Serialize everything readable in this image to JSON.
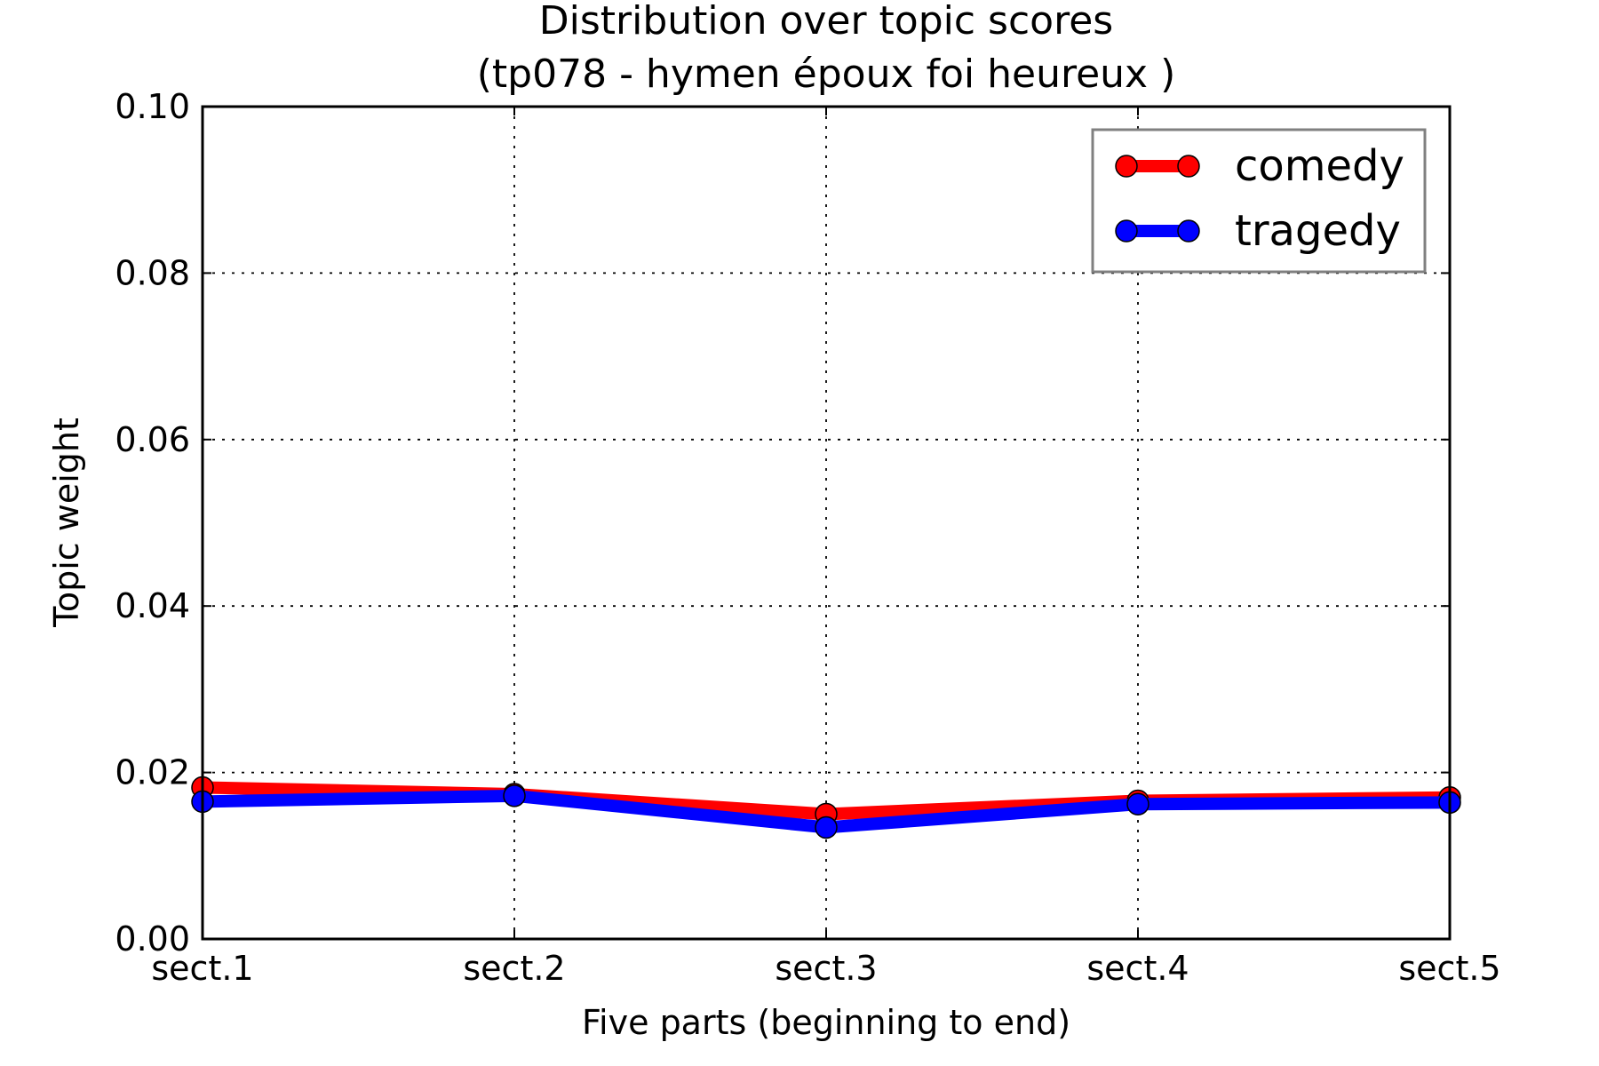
{
  "chart_data": {
    "type": "line",
    "title": "Distribution over topic scores",
    "subtitle": "(tp078 - hymen époux foi heureux )",
    "xlabel": "Five parts (beginning to end)",
    "ylabel": "Topic weight",
    "categories": [
      "sect.1",
      "sect.2",
      "sect.3",
      "sect.4",
      "sect.5"
    ],
    "ylim": [
      0,
      0.1
    ],
    "yticks": [
      "0.00",
      "0.02",
      "0.04",
      "0.06",
      "0.08",
      "0.10"
    ],
    "grid": true,
    "legend_position": "top-right",
    "series": [
      {
        "name": "comedy",
        "color": "#ff0000",
        "values": [
          0.0182,
          0.0174,
          0.015,
          0.0166,
          0.017
        ]
      },
      {
        "name": "tragedy",
        "color": "#0000ff",
        "values": [
          0.0165,
          0.0172,
          0.0134,
          0.0162,
          0.0164
        ]
      }
    ]
  }
}
